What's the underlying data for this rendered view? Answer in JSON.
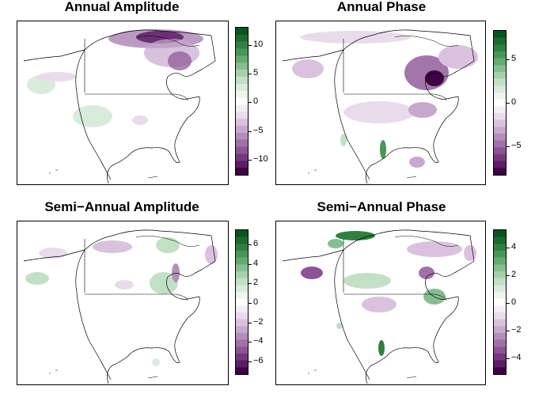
{
  "panels": [
    {
      "title": "Annual Amplitude",
      "ticks": [
        "10",
        "5",
        "0",
        "−5",
        "−10"
      ]
    },
    {
      "title": "Annual Phase",
      "ticks": [
        "5",
        "0",
        "−5"
      ]
    },
    {
      "title": "Semi−Annual Amplitude",
      "ticks": [
        "6",
        "4",
        "2",
        "0",
        "−2",
        "−4",
        "−6"
      ]
    },
    {
      "title": "Semi−Annual Phase",
      "ticks": [
        "4",
        "2",
        "0",
        "−2",
        "−4"
      ]
    }
  ],
  "colors": {
    "scale": [
      "#3f0045",
      "#5c1c66",
      "#76377f",
      "#8b5495",
      "#a071a8",
      "#b48dbb",
      "#c8a8ce",
      "#dac2de",
      "#e9dbec",
      "#f4edf5",
      "#ffffff",
      "#edf5ee",
      "#d9ecdb",
      "#c2e0c5",
      "#a6d1ab",
      "#86bf8f",
      "#65ab71",
      "#4a9657",
      "#318041",
      "#1c6a2e",
      "#0a5420"
    ]
  }
}
